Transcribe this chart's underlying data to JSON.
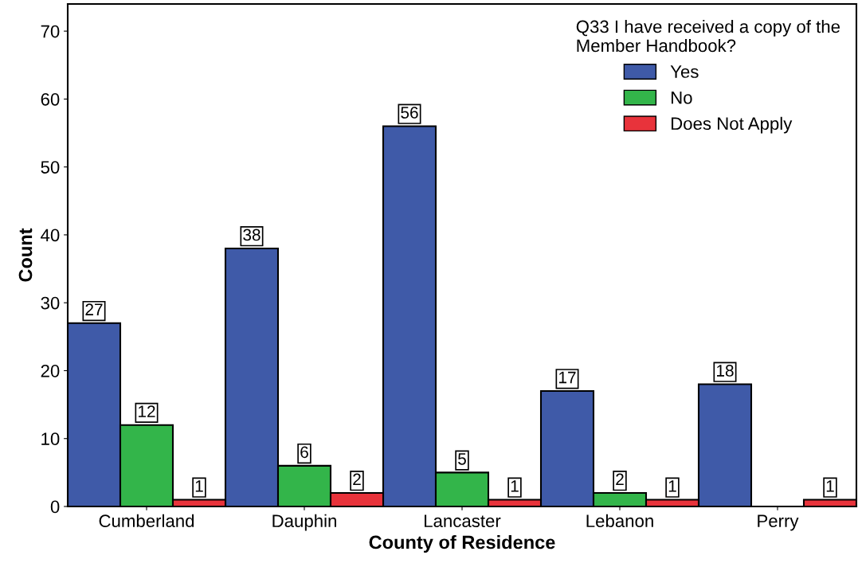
{
  "chart_data": {
    "type": "bar",
    "xlabel": "County of Residence",
    "ylabel": "Count",
    "legend_title": "Q33 I have received a copy of the\nMember Handbook?",
    "categories": [
      "Cumberland",
      "Dauphin",
      "Lancaster",
      "Lebanon",
      "Perry"
    ],
    "series": [
      {
        "name": "Yes",
        "color": "#3f5aa8",
        "values": [
          27,
          38,
          56,
          17,
          18
        ],
        "value_labels": [
          "27",
          "38",
          "56",
          "17",
          "18"
        ]
      },
      {
        "name": "No",
        "color": "#33b54a",
        "values": [
          12,
          6,
          5,
          2,
          null
        ],
        "value_labels": [
          "12",
          "6",
          "5",
          "2",
          null
        ]
      },
      {
        "name": "Does Not Apply",
        "color": "#e8333b",
        "values": [
          1,
          2,
          1,
          1,
          1
        ],
        "value_labels": [
          "1",
          "2",
          "1",
          "1",
          "1"
        ]
      }
    ],
    "ylim": [
      0,
      74
    ],
    "yticks": [
      0,
      10,
      20,
      30,
      40,
      50,
      60,
      70
    ],
    "grid": false,
    "legend": "top right"
  }
}
